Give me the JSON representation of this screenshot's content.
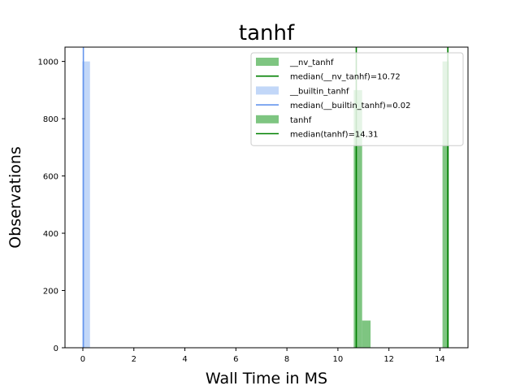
{
  "chart_data": {
    "type": "bar",
    "title": "tanhf",
    "xlabel": "Wall Time in MS",
    "ylabel": "Observations",
    "xlim": [
      -0.7,
      15.1
    ],
    "ylim": [
      0,
      1050
    ],
    "xticks": [
      0,
      2,
      4,
      6,
      8,
      10,
      12,
      14
    ],
    "yticks": [
      0,
      200,
      400,
      600,
      800,
      1000
    ],
    "grid": false,
    "legend_position": "top-right",
    "series": [
      {
        "name": "__nv_tanhf",
        "kind": "histogram",
        "color": "#4caf50",
        "bins": [
          {
            "x0": 10.62,
            "x1": 10.95,
            "count": 900
          },
          {
            "x0": 10.95,
            "x1": 11.28,
            "count": 95
          }
        ]
      },
      {
        "name": "median(__nv_tanhf)=10.72",
        "kind": "vline",
        "color": "#008000",
        "x": 10.72
      },
      {
        "name": "__builtin_tanhf",
        "kind": "histogram",
        "color": "#abc8f5",
        "bins": [
          {
            "x0": -0.02,
            "x1": 0.28,
            "count": 1000
          }
        ]
      },
      {
        "name": "median(__builtin_tanhf)=0.02",
        "kind": "vline",
        "color": "#6495ed",
        "x": 0.02
      },
      {
        "name": "tanhf",
        "kind": "histogram",
        "color": "#4caf50",
        "bins": [
          {
            "x0": 14.1,
            "x1": 14.35,
            "count": 1000
          }
        ]
      },
      {
        "name": "median(tanhf)=14.31",
        "kind": "vline",
        "color": "#008000",
        "x": 14.31
      }
    ]
  }
}
